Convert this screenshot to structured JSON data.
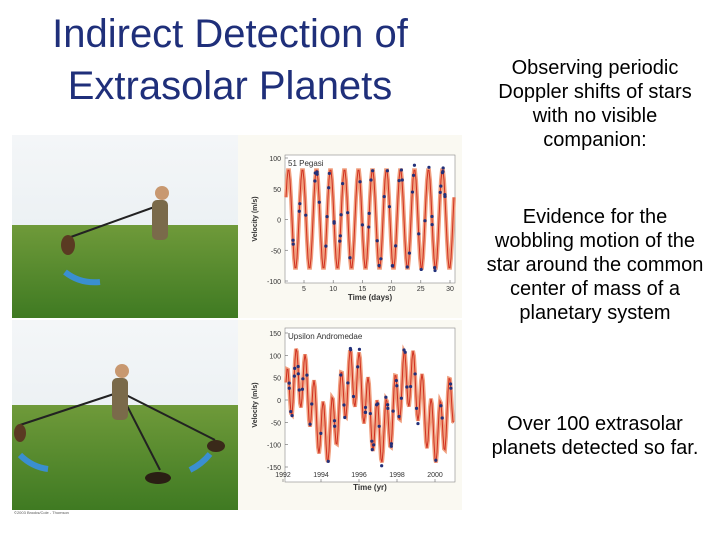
{
  "slide": {
    "title": [
      "Indirect Detection of",
      "Extrasolar Planets"
    ],
    "paragraphs": [
      "Observing periodic Doppler shifts of stars with no visible companion:",
      "Evidence for the wobbling motion of the star around the common center of mass of a planetary system",
      "Over 100 extrasolar planets detected so far."
    ],
    "figure": {
      "charts": [
        {
          "label": "51 Pegasi",
          "ylabel": "Velocity (m/s)",
          "xlabel": "Time (days)",
          "yticks": [
            100,
            50,
            0,
            -50,
            -100
          ],
          "xticks": [
            5,
            10,
            15,
            20,
            25,
            30
          ]
        },
        {
          "label": "Upsilon Andromedae",
          "ylabel": "Velocity (m/s)",
          "xlabel": "Time (yr)",
          "yticks": [
            150,
            100,
            50,
            0,
            -50,
            -100,
            -150
          ],
          "xticks": [
            1992,
            1994,
            1996,
            1998,
            2000
          ]
        }
      ],
      "credit": "©2003 Brooks/Cole - Thomson"
    }
  }
}
